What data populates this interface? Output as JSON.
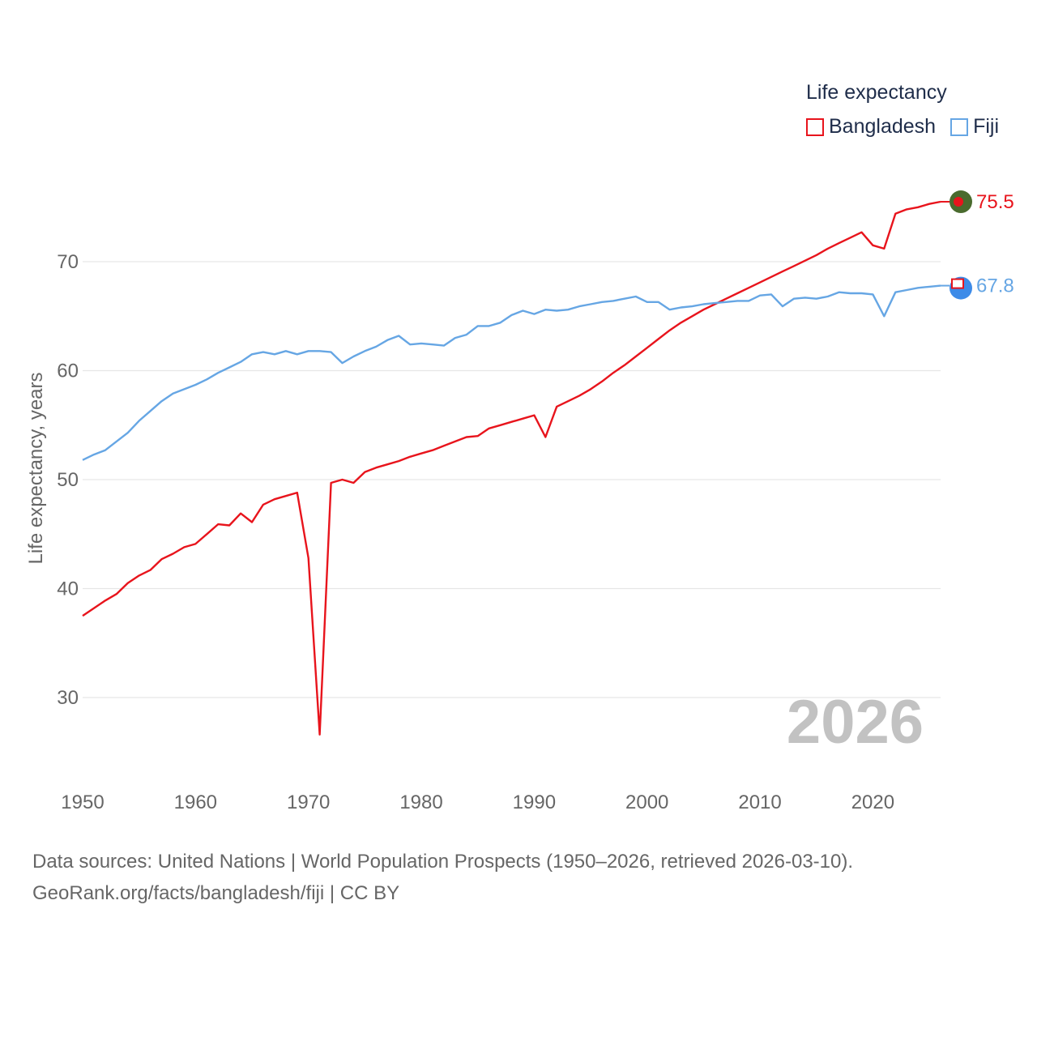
{
  "legend": {
    "title": "Life expectancy",
    "items": [
      {
        "label": "Bangladesh",
        "color": "#e8141c"
      },
      {
        "label": "Fiji",
        "color": "#66a6e4"
      }
    ]
  },
  "year_watermark": "2026",
  "source": {
    "line1": "Data sources: United Nations | World Population Prospects (1950–2026, retrieved 2026-03-10).",
    "line2": "GeoRank.org/facts/bangladesh/fiji | CC BY"
  },
  "chart_data": {
    "type": "line",
    "title": "Life expectancy",
    "xlabel": "",
    "ylabel": "Life expectancy, years",
    "xlim": [
      1950,
      2026
    ],
    "ylim": [
      23,
      80
    ],
    "grid": true,
    "x_ticks": [
      1950,
      1960,
      1970,
      1980,
      1990,
      2000,
      2010,
      2020
    ],
    "y_ticks": [
      30,
      40,
      50,
      60,
      70
    ],
    "legend_position": "top-right",
    "x": [
      1950,
      1951,
      1952,
      1953,
      1954,
      1955,
      1956,
      1957,
      1958,
      1959,
      1960,
      1961,
      1962,
      1963,
      1964,
      1965,
      1966,
      1967,
      1968,
      1969,
      1970,
      1971,
      1972,
      1973,
      1974,
      1975,
      1976,
      1977,
      1978,
      1979,
      1980,
      1981,
      1982,
      1983,
      1984,
      1985,
      1986,
      1987,
      1988,
      1989,
      1990,
      1991,
      1992,
      1993,
      1994,
      1995,
      1996,
      1997,
      1998,
      1999,
      2000,
      2001,
      2002,
      2003,
      2004,
      2005,
      2006,
      2007,
      2008,
      2009,
      2010,
      2011,
      2012,
      2013,
      2014,
      2015,
      2016,
      2017,
      2018,
      2019,
      2020,
      2021,
      2022,
      2023,
      2024,
      2025,
      2026
    ],
    "series": [
      {
        "name": "Bangladesh",
        "color": "#e8141c",
        "end_label": "75.5",
        "values": [
          37.5,
          38.2,
          38.9,
          39.5,
          40.5,
          41.2,
          41.7,
          42.7,
          43.2,
          43.8,
          44.1,
          45.0,
          45.9,
          45.8,
          46.9,
          46.1,
          47.7,
          48.2,
          48.5,
          48.8,
          42.8,
          26.6,
          49.7,
          50.0,
          49.7,
          50.7,
          51.1,
          51.4,
          51.7,
          52.1,
          52.4,
          52.7,
          53.1,
          53.5,
          53.9,
          54.0,
          54.7,
          55.0,
          55.3,
          55.6,
          55.9,
          53.9,
          56.7,
          57.2,
          57.7,
          58.3,
          59.0,
          59.8,
          60.5,
          61.3,
          62.1,
          62.9,
          63.7,
          64.4,
          65.0,
          65.6,
          66.1,
          66.6,
          67.1,
          67.6,
          68.1,
          68.6,
          69.1,
          69.6,
          70.1,
          70.6,
          71.2,
          71.7,
          72.2,
          72.7,
          71.5,
          71.2,
          74.4,
          74.8,
          75.0,
          75.3,
          75.5
        ]
      },
      {
        "name": "Fiji",
        "color": "#66a6e4",
        "end_label": "67.8",
        "values": [
          51.8,
          52.3,
          52.7,
          53.5,
          54.3,
          55.4,
          56.3,
          57.2,
          57.9,
          58.3,
          58.7,
          59.2,
          59.8,
          60.3,
          60.8,
          61.5,
          61.7,
          61.5,
          61.8,
          61.5,
          61.8,
          61.8,
          61.7,
          60.7,
          61.3,
          61.8,
          62.2,
          62.8,
          63.2,
          62.4,
          62.5,
          62.4,
          62.3,
          63.0,
          63.3,
          64.1,
          64.1,
          64.4,
          65.1,
          65.5,
          65.2,
          65.6,
          65.5,
          65.6,
          65.9,
          66.1,
          66.3,
          66.4,
          66.6,
          66.8,
          66.3,
          66.3,
          65.6,
          65.8,
          65.9,
          66.1,
          66.2,
          66.3,
          66.4,
          66.4,
          66.9,
          67.0,
          65.9,
          66.6,
          66.7,
          66.6,
          66.8,
          67.2,
          67.1,
          67.1,
          67.0,
          65.0,
          67.2,
          67.4,
          67.6,
          67.7,
          67.8
        ]
      }
    ]
  }
}
